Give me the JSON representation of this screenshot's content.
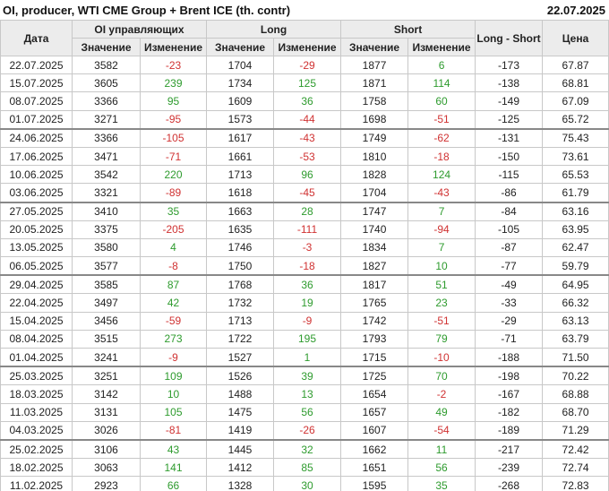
{
  "header": {
    "title": "OI, producer, WTI CME Group + Brent ICE (th. contr)",
    "date": "22.07.2025"
  },
  "table": {
    "head_groups": [
      "Дата",
      "OI управляющих",
      "Long",
      "Short",
      "Long - Short",
      "Цена"
    ],
    "sub_headers": [
      "Значение",
      "Изменение",
      "Значение",
      "Изменение",
      "Значение",
      "Изменение"
    ],
    "rows": [
      [
        "22.07.2025",
        "3582",
        "-23",
        "1704",
        "-29",
        "1877",
        "6",
        "-173",
        "67.87"
      ],
      [
        "15.07.2025",
        "3605",
        "239",
        "1734",
        "125",
        "1871",
        "114",
        "-138",
        "68.81"
      ],
      [
        "08.07.2025",
        "3366",
        "95",
        "1609",
        "36",
        "1758",
        "60",
        "-149",
        "67.09"
      ],
      [
        "01.07.2025",
        "3271",
        "-95",
        "1573",
        "-44",
        "1698",
        "-51",
        "-125",
        "65.72"
      ],
      [
        "24.06.2025",
        "3366",
        "-105",
        "1617",
        "-43",
        "1749",
        "-62",
        "-131",
        "75.43"
      ],
      [
        "17.06.2025",
        "3471",
        "-71",
        "1661",
        "-53",
        "1810",
        "-18",
        "-150",
        "73.61"
      ],
      [
        "10.06.2025",
        "3542",
        "220",
        "1713",
        "96",
        "1828",
        "124",
        "-115",
        "65.53"
      ],
      [
        "03.06.2025",
        "3321",
        "-89",
        "1618",
        "-45",
        "1704",
        "-43",
        "-86",
        "61.79"
      ],
      [
        "27.05.2025",
        "3410",
        "35",
        "1663",
        "28",
        "1747",
        "7",
        "-84",
        "63.16"
      ],
      [
        "20.05.2025",
        "3375",
        "-205",
        "1635",
        "-111",
        "1740",
        "-94",
        "-105",
        "63.95"
      ],
      [
        "13.05.2025",
        "3580",
        "4",
        "1746",
        "-3",
        "1834",
        "7",
        "-87",
        "62.47"
      ],
      [
        "06.05.2025",
        "3577",
        "-8",
        "1750",
        "-18",
        "1827",
        "10",
        "-77",
        "59.79"
      ],
      [
        "29.04.2025",
        "3585",
        "87",
        "1768",
        "36",
        "1817",
        "51",
        "-49",
        "64.95"
      ],
      [
        "22.04.2025",
        "3497",
        "42",
        "1732",
        "19",
        "1765",
        "23",
        "-33",
        "66.32"
      ],
      [
        "15.04.2025",
        "3456",
        "-59",
        "1713",
        "-9",
        "1742",
        "-51",
        "-29",
        "63.13"
      ],
      [
        "08.04.2025",
        "3515",
        "273",
        "1722",
        "195",
        "1793",
        "79",
        "-71",
        "63.79"
      ],
      [
        "01.04.2025",
        "3241",
        "-9",
        "1527",
        "1",
        "1715",
        "-10",
        "-188",
        "71.50"
      ],
      [
        "25.03.2025",
        "3251",
        "109",
        "1526",
        "39",
        "1725",
        "70",
        "-198",
        "70.22"
      ],
      [
        "18.03.2025",
        "3142",
        "10",
        "1488",
        "13",
        "1654",
        "-2",
        "-167",
        "68.88"
      ],
      [
        "11.03.2025",
        "3131",
        "105",
        "1475",
        "56",
        "1657",
        "49",
        "-182",
        "68.70"
      ],
      [
        "04.03.2025",
        "3026",
        "-81",
        "1419",
        "-26",
        "1607",
        "-54",
        "-189",
        "71.29"
      ],
      [
        "25.02.2025",
        "3106",
        "43",
        "1445",
        "32",
        "1662",
        "11",
        "-217",
        "72.42"
      ],
      [
        "18.02.2025",
        "3063",
        "141",
        "1412",
        "85",
        "1651",
        "56",
        "-239",
        "72.74"
      ],
      [
        "11.02.2025",
        "2923",
        "66",
        "1328",
        "30",
        "1595",
        "35",
        "-268",
        "72.83"
      ]
    ]
  }
}
